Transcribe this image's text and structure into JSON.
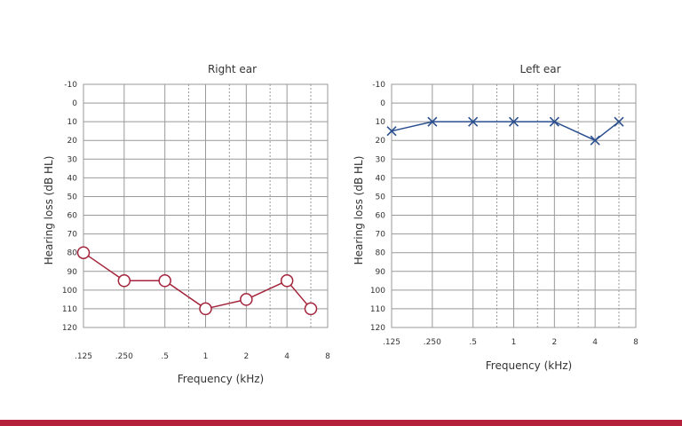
{
  "chart_data": [
    {
      "type": "line",
      "title": "Right ear",
      "xlabel": "Frequency (kHz)",
      "ylabel": "Hearing loss (dB HL)",
      "categories": [
        ".125",
        ".250",
        ".5",
        "1",
        "2",
        "4",
        "8"
      ],
      "yticks": [
        "-10",
        "0",
        "10",
        "20",
        "30",
        "40",
        "50",
        "60",
        "70",
        "80",
        "90",
        "100",
        "110",
        "120"
      ],
      "ylim": [
        -10,
        120
      ],
      "y_inverted": true,
      "grid": true,
      "marker": "circle",
      "color": "#a3243b",
      "series": [
        {
          "x": [
            0.125,
            0.25,
            0.5,
            1,
            2,
            4,
            6
          ],
          "values": [
            80,
            95,
            95,
            110,
            105,
            95,
            110
          ]
        }
      ]
    },
    {
      "type": "line",
      "title": "Left ear",
      "xlabel": "Frequency (kHz)",
      "ylabel": "Hearing loss (dB HL)",
      "categories": [
        ".125",
        ".250",
        ".5",
        "1",
        "2",
        "4",
        "8"
      ],
      "yticks": [
        "-10",
        "0",
        "10",
        "20",
        "30",
        "40",
        "50",
        "60",
        "70",
        "80",
        "90",
        "100",
        "110",
        "120"
      ],
      "ylim": [
        -10,
        120
      ],
      "y_inverted": true,
      "grid": true,
      "marker": "cross",
      "color": "#2a4f8f",
      "series": [
        {
          "x": [
            0.125,
            0.25,
            0.5,
            1,
            2,
            4,
            6
          ],
          "values": [
            15,
            10,
            10,
            10,
            10,
            20,
            10
          ]
        }
      ]
    }
  ]
}
